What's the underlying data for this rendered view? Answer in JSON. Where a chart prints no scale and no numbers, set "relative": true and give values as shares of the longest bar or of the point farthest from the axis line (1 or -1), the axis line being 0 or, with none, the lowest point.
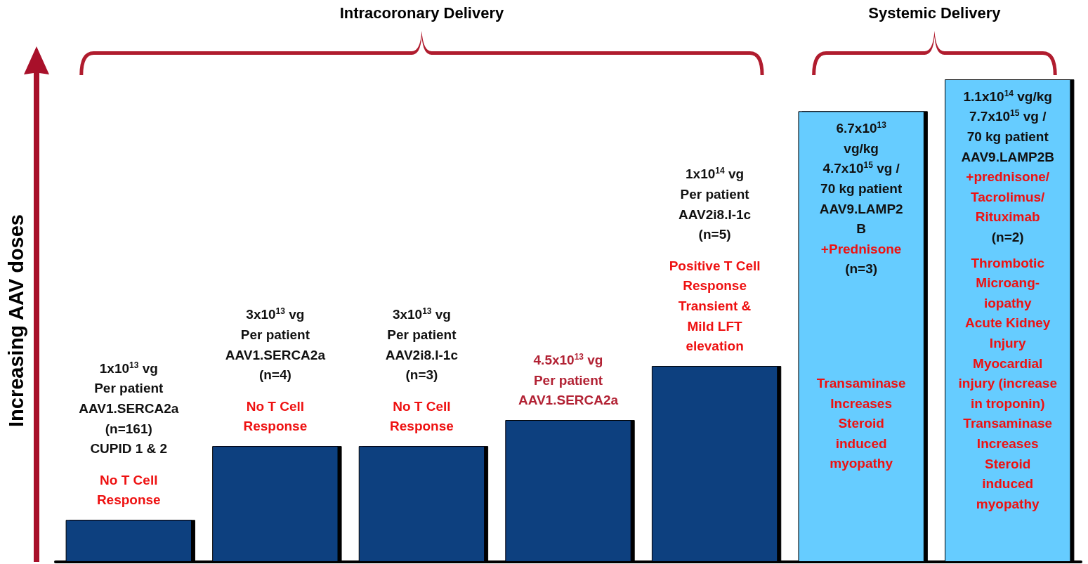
{
  "chart_data": {
    "type": "bar",
    "relative": true,
    "ylabel": "Increasing AAV doses",
    "categories": [
      null,
      null,
      null,
      null,
      null,
      null,
      null
    ],
    "values": [
      0.087,
      0.24,
      0.24,
      0.294,
      0.406,
      0.934,
      1
    ],
    "colors": [
      "#0b3f7f",
      "#0b3f7f",
      "#0b3f7f",
      "#0b3f7f",
      "#0b3f7f",
      "#66ccff",
      "#66ccff"
    ],
    "tick_labels": false,
    "annotations": [
      "Intracoronary Delivery",
      "Systemic Delivery",
      "1x10$^{13}$ vg\nPer patient\nAAV1.SERCA2a\n(n=161)\nCUPID 1 & 2",
      "No T Cell\nResponse",
      "3x10$^{13}$ vg\nPer patient\nAAV1.SERCA2a\n(n=4)",
      "No T Cell\nResponse",
      "3x10$^{13}$ vg\nPer patient\nAAV2i8.I-1c\n(n=3)",
      "No T Cell\nResponse",
      "4.5x10$^{13}$ vg\nPer patient\nAAV1.SERCA2a",
      "1x10$^{14}$ vg\nPer patient\nAAV2i8.I-1c\n(n=5)",
      "Positive T Cell\nResponse\nTransient &\nMild LFT\nelevation",
      "6.7x10$^{13}$\nvg/kg\n4.7x10$^{15}$ vg /\n70 kg patient\nAAV9.LAMP2\nB",
      "+Prednisone",
      "(n=3)",
      "Transaminase\nIncreases\nSteroid\ninduced\nmyopathy",
      "1.1x10$^{14}$ vg/kg\n7.7x10$^{15}$ vg /\n70 kg patient\nAAV9.LAMP2B",
      "+prednisone/\nTacrolimus/\nRituximab",
      "(n=2)",
      "Thrombotic\nMicroang-\niopathy\nAcute Kidney\nInjury\nMyocardial\ninjury (increase\nin troponin)\nTransaminase\nIncreases\nSteroid\ninduced\nmyopathy"
    ]
  }
}
